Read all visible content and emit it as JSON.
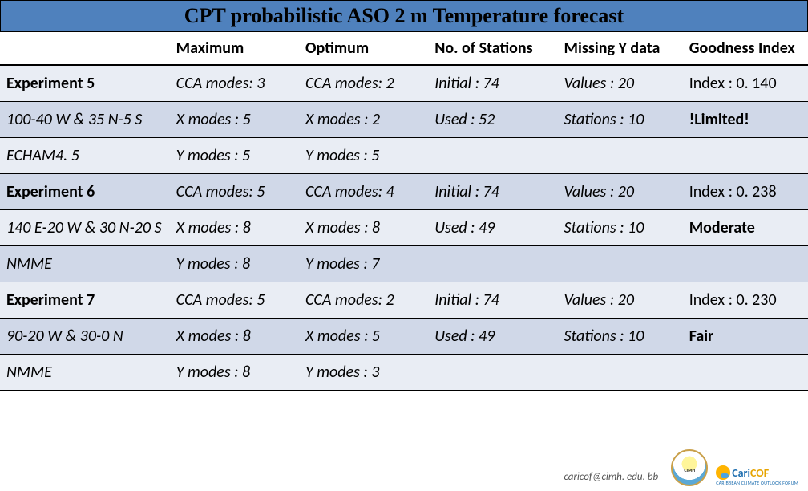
{
  "title": "CPT probabilistic ASO 2 m Temperature forecast",
  "columns": [
    "",
    "Maximum",
    "Optimum",
    "No. of Stations",
    "Missing Y data",
    "Goodness Index"
  ],
  "rows": [
    {
      "label": "Experiment 5",
      "label_bold": true,
      "label_italic": false,
      "cells": [
        "CCA modes: 3",
        "CCA modes: 2",
        "Initial : 74",
        "Values : 20",
        "Index : 0. 140"
      ],
      "cell_italic": [
        true,
        true,
        true,
        true,
        false
      ],
      "cell_bold": [
        false,
        false,
        false,
        false,
        false
      ],
      "stripe": "even"
    },
    {
      "label": "100-40 W & 35 N-5 S",
      "label_bold": false,
      "label_italic": true,
      "cells": [
        "X modes : 5",
        "X modes : 2",
        "Used : 52",
        "Stations : 10",
        "!Limited!"
      ],
      "cell_italic": [
        true,
        true,
        true,
        true,
        false
      ],
      "cell_bold": [
        false,
        false,
        false,
        false,
        true
      ],
      "stripe": "odd"
    },
    {
      "label": "ECHAM4. 5",
      "label_bold": false,
      "label_italic": true,
      "cells": [
        "Y modes : 5",
        "Y modes : 5",
        "",
        "",
        ""
      ],
      "cell_italic": [
        true,
        true,
        false,
        false,
        false
      ],
      "cell_bold": [
        false,
        false,
        false,
        false,
        false
      ],
      "stripe": "even"
    },
    {
      "label": "Experiment 6",
      "label_bold": true,
      "label_italic": false,
      "cells": [
        "CCA modes: 5",
        "CCA modes: 4",
        "Initial : 74",
        "Values : 20",
        "Index : 0. 238"
      ],
      "cell_italic": [
        true,
        true,
        true,
        true,
        false
      ],
      "cell_bold": [
        false,
        false,
        false,
        false,
        false
      ],
      "stripe": "odd"
    },
    {
      "label": "140 E-20 W & 30 N-20 S",
      "label_bold": false,
      "label_italic": true,
      "cells": [
        "X modes : 8",
        "X modes : 8",
        "Used : 49",
        "Stations : 10",
        "Moderate"
      ],
      "cell_italic": [
        true,
        true,
        true,
        true,
        false
      ],
      "cell_bold": [
        false,
        false,
        false,
        false,
        true
      ],
      "stripe": "even"
    },
    {
      "label": "NMME",
      "label_bold": false,
      "label_italic": true,
      "cells": [
        "Y modes : 8",
        "Y modes : 7",
        "",
        "",
        ""
      ],
      "cell_italic": [
        true,
        true,
        false,
        false,
        false
      ],
      "cell_bold": [
        false,
        false,
        false,
        false,
        false
      ],
      "stripe": "odd"
    },
    {
      "label": "Experiment 7",
      "label_bold": true,
      "label_italic": false,
      "cells": [
        "CCA modes: 5",
        "CCA modes: 2",
        "Initial : 74",
        "Values : 20",
        "Index : 0. 230"
      ],
      "cell_italic": [
        true,
        true,
        true,
        true,
        false
      ],
      "cell_bold": [
        false,
        false,
        false,
        false,
        false
      ],
      "stripe": "even"
    },
    {
      "label": "90-20 W & 30-0 N",
      "label_bold": false,
      "label_italic": true,
      "cells": [
        "X modes : 8",
        "X modes : 5",
        "Used : 49",
        "Stations : 10",
        "Fair"
      ],
      "cell_italic": [
        true,
        true,
        true,
        true,
        false
      ],
      "cell_bold": [
        false,
        false,
        false,
        false,
        true
      ],
      "stripe": "odd"
    },
    {
      "label": "NMME",
      "label_bold": false,
      "label_italic": true,
      "cells": [
        "Y modes : 8",
        "Y modes : 3",
        "",
        "",
        ""
      ],
      "cell_italic": [
        true,
        true,
        false,
        false,
        false
      ],
      "cell_bold": [
        false,
        false,
        false,
        false,
        false
      ],
      "stripe": "even"
    }
  ],
  "footer": {
    "email": "caricof@cimh. edu. bb",
    "cimh_badge_text": "CIMH",
    "caricof_cari": "Cari",
    "caricof_cof": "COF",
    "caricof_sub": "CARIBBEAN CLIMATE OUTLOOK FORUM"
  },
  "colors": {
    "title_bg": "#4f81bd",
    "row_even": "#e9edf4",
    "row_odd": "#d0d8e8",
    "border": "#000000",
    "text": "#000000"
  }
}
